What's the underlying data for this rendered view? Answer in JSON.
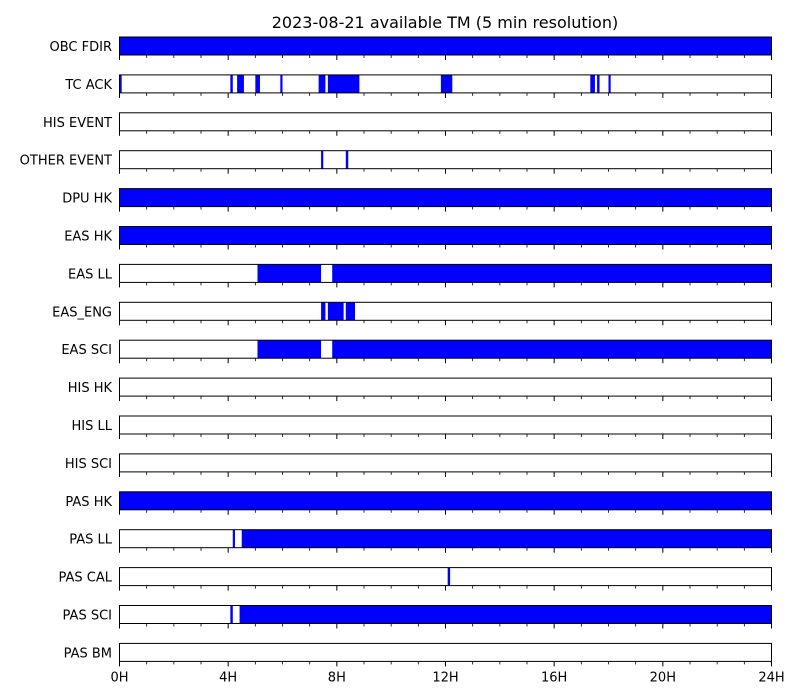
{
  "chart_data": {
    "type": "timeline",
    "title": "2023-08-21 available TM (5 min resolution)",
    "xlabel": "",
    "ylabel": "",
    "xlim": [
      0,
      24
    ],
    "x_unit": "hours",
    "major_ticks": [
      0,
      4,
      8,
      12,
      16,
      20,
      24
    ],
    "tick_labels": [
      "0H",
      "4H",
      "8H",
      "12H",
      "16H",
      "20H",
      "24H"
    ],
    "minor_tick_step_hours": 1,
    "bar_color": "#0000ff",
    "grid": false,
    "legend": "none",
    "rows": [
      {
        "name": "OBC FDIR",
        "intervals": [
          [
            0,
            24
          ]
        ]
      },
      {
        "name": "TC ACK",
        "intervals": [
          [
            0,
            0.08
          ],
          [
            4.08,
            4.17
          ],
          [
            4.33,
            4.58
          ],
          [
            5.0,
            5.17
          ],
          [
            5.92,
            6.0
          ],
          [
            7.33,
            7.58
          ],
          [
            7.67,
            8.83
          ],
          [
            11.83,
            12.25
          ],
          [
            17.33,
            17.5
          ],
          [
            17.58,
            17.67
          ],
          [
            18.0,
            18.08
          ]
        ]
      },
      {
        "name": "HIS EVENT",
        "intervals": []
      },
      {
        "name": "OTHER EVENT",
        "intervals": [
          [
            7.42,
            7.5
          ],
          [
            8.33,
            8.42
          ]
        ]
      },
      {
        "name": "DPU HK",
        "intervals": [
          [
            0,
            24
          ]
        ]
      },
      {
        "name": "EAS HK",
        "intervals": [
          [
            0,
            24
          ]
        ]
      },
      {
        "name": "EAS LL",
        "intervals": [
          [
            5.08,
            7.42
          ],
          [
            7.83,
            24
          ]
        ]
      },
      {
        "name": "EAS_ENG",
        "intervals": [
          [
            7.42,
            7.58
          ],
          [
            7.67,
            8.25
          ],
          [
            8.33,
            8.67
          ]
        ]
      },
      {
        "name": "EAS SCI",
        "intervals": [
          [
            5.08,
            7.42
          ],
          [
            7.83,
            24
          ]
        ]
      },
      {
        "name": "HIS HK",
        "intervals": []
      },
      {
        "name": "HIS LL",
        "intervals": []
      },
      {
        "name": "HIS SCI",
        "intervals": []
      },
      {
        "name": "PAS HK",
        "intervals": [
          [
            0,
            24
          ]
        ]
      },
      {
        "name": "PAS LL",
        "intervals": [
          [
            4.17,
            4.25
          ],
          [
            4.5,
            24
          ]
        ]
      },
      {
        "name": "PAS CAL",
        "intervals": [
          [
            12.08,
            12.17
          ]
        ]
      },
      {
        "name": "PAS SCI",
        "intervals": [
          [
            4.08,
            4.17
          ],
          [
            4.42,
            24
          ]
        ]
      },
      {
        "name": "PAS BM",
        "intervals": []
      }
    ]
  }
}
